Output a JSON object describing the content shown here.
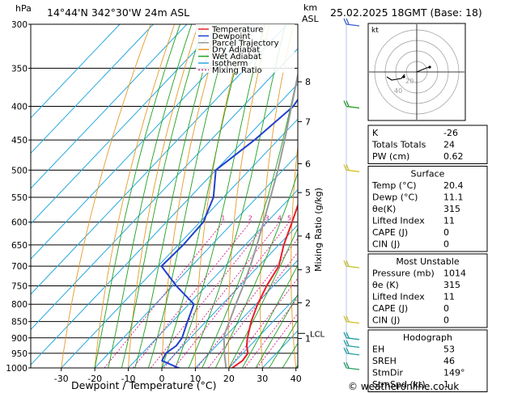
{
  "header": {
    "coords": "14°44'N  342°30'W  24m  ASL",
    "datetime": "25.02.2025  18GMT  (Base: 18)",
    "hpa_label": "hPa",
    "km_label": "km",
    "asl_label": "ASL",
    "mixing_ratio_axis_label": "Mixing Ratio (g/kg)",
    "xaxis_label": "Dewpoint / Temperature (°C)",
    "copyright": "© weatheronline.co.uk"
  },
  "legend": [
    {
      "label": "Temperature",
      "color": "#e8202a"
    },
    {
      "label": "Dewpoint",
      "color": "#2040d0"
    },
    {
      "label": "Parcel Trajectory",
      "color": "#9a9a9a"
    },
    {
      "label": "Dry Adiabat",
      "color": "#e59a2a"
    },
    {
      "label": "Wet Adiabat",
      "color": "#20a020"
    },
    {
      "label": "Isotherm",
      "color": "#28a8e0"
    },
    {
      "label": "Mixing Ratio",
      "color": "#d0208a"
    }
  ],
  "chart_data": {
    "type": "line",
    "title": "",
    "xlabel": "Dewpoint / Temperature (°C)",
    "ylabel": "hPa",
    "pressure_levels": [
      300,
      350,
      400,
      450,
      500,
      550,
      600,
      650,
      700,
      750,
      800,
      850,
      900,
      950,
      1000
    ],
    "xticks": [
      -30,
      -20,
      -10,
      0,
      10,
      20,
      30,
      40
    ],
    "km_ticks": [
      {
        "km": "8",
        "p": 367
      },
      {
        "km": "7",
        "p": 422
      },
      {
        "km": "6",
        "p": 489
      },
      {
        "km": "5",
        "p": 541
      },
      {
        "km": "4",
        "p": 630
      },
      {
        "km": "3",
        "p": 709
      },
      {
        "km": "2",
        "p": 796
      },
      {
        "km": "1",
        "p": 902
      }
    ],
    "lcl_label": "LCL",
    "lcl_p": 886,
    "mixing_ratio_labels": [
      "1",
      "2",
      "3",
      "4",
      "5",
      "8",
      "10",
      "15",
      "20",
      "25"
    ],
    "series": [
      {
        "name": "Temperature",
        "points": [
          [
            1014,
            20.4
          ],
          [
            1000,
            21.0
          ],
          [
            975,
            22.0
          ],
          [
            950,
            21.5
          ],
          [
            925,
            19.0
          ],
          [
            900,
            17.0
          ],
          [
            850,
            13.5
          ],
          [
            800,
            10.5
          ],
          [
            750,
            8.0
          ],
          [
            700,
            6.0
          ],
          [
            650,
            1.5
          ],
          [
            600,
            -2.5
          ],
          [
            550,
            -7.0
          ],
          [
            500,
            -12.5
          ],
          [
            450,
            -18.0
          ],
          [
            400,
            -25.0
          ],
          [
            350,
            -34.0
          ],
          [
            300,
            -43.0
          ]
        ]
      },
      {
        "name": "Dewpoint",
        "points": [
          [
            1014,
            11.1
          ],
          [
            1000,
            5.0
          ],
          [
            975,
            -2.0
          ],
          [
            950,
            -3.0
          ],
          [
            925,
            -2.0
          ],
          [
            900,
            -2.5
          ],
          [
            850,
            -5.5
          ],
          [
            800,
            -8.5
          ],
          [
            750,
            -19.0
          ],
          [
            700,
            -29.0
          ],
          [
            650,
            -28.5
          ],
          [
            600,
            -29.0
          ],
          [
            550,
            -33.0
          ],
          [
            500,
            -40.0
          ],
          [
            450,
            -37.0
          ],
          [
            400,
            -35.0
          ],
          [
            350,
            -38.0
          ],
          [
            300,
            -42.0
          ]
        ]
      },
      {
        "name": "Parcel Trajectory",
        "points": [
          [
            1014,
            20.4
          ],
          [
            950,
            14.5
          ],
          [
            900,
            10.0
          ],
          [
            886,
            9.0
          ],
          [
            850,
            7.0
          ],
          [
            800,
            4.0
          ],
          [
            750,
            1.0
          ],
          [
            700,
            -2.5
          ],
          [
            650,
            -6.5
          ],
          [
            600,
            -11.0
          ],
          [
            550,
            -16.0
          ],
          [
            500,
            -21.5
          ],
          [
            450,
            -28.0
          ],
          [
            400,
            -35.5
          ],
          [
            350,
            -44.0
          ],
          [
            300,
            -53.0
          ]
        ]
      }
    ]
  },
  "indices": {
    "rows": [
      {
        "label": "K",
        "value": "-26"
      },
      {
        "label": "Totals Totals",
        "value": "24"
      },
      {
        "label": "PW (cm)",
        "value": "0.62"
      }
    ]
  },
  "surface": {
    "title": "Surface",
    "rows": [
      {
        "label": "Temp (°C)",
        "value": "20.4"
      },
      {
        "label": "Dewp (°C)",
        "value": "11.1"
      },
      {
        "label": "θe(K)",
        "value": "315"
      },
      {
        "label": "Lifted Index",
        "value": "11"
      },
      {
        "label": "CAPE (J)",
        "value": "0"
      },
      {
        "label": "CIN (J)",
        "value": "0"
      }
    ]
  },
  "most_unstable": {
    "title": "Most Unstable",
    "rows": [
      {
        "label": "Pressure (mb)",
        "value": "1014"
      },
      {
        "label": "θe (K)",
        "value": "315"
      },
      {
        "label": "Lifted Index",
        "value": "11"
      },
      {
        "label": "CAPE (J)",
        "value": "0"
      },
      {
        "label": "CIN (J)",
        "value": "0"
      }
    ]
  },
  "hodograph": {
    "title": "Hodograph",
    "kt_label": "kt",
    "ring_labels": [
      "20",
      "40"
    ],
    "rows": [
      {
        "label": "EH",
        "value": "53"
      },
      {
        "label": "SREH",
        "value": "46"
      },
      {
        "label": "StmDir",
        "value": "149°"
      },
      {
        "label": "StmSpd (kt)",
        "value": "1"
      }
    ]
  }
}
